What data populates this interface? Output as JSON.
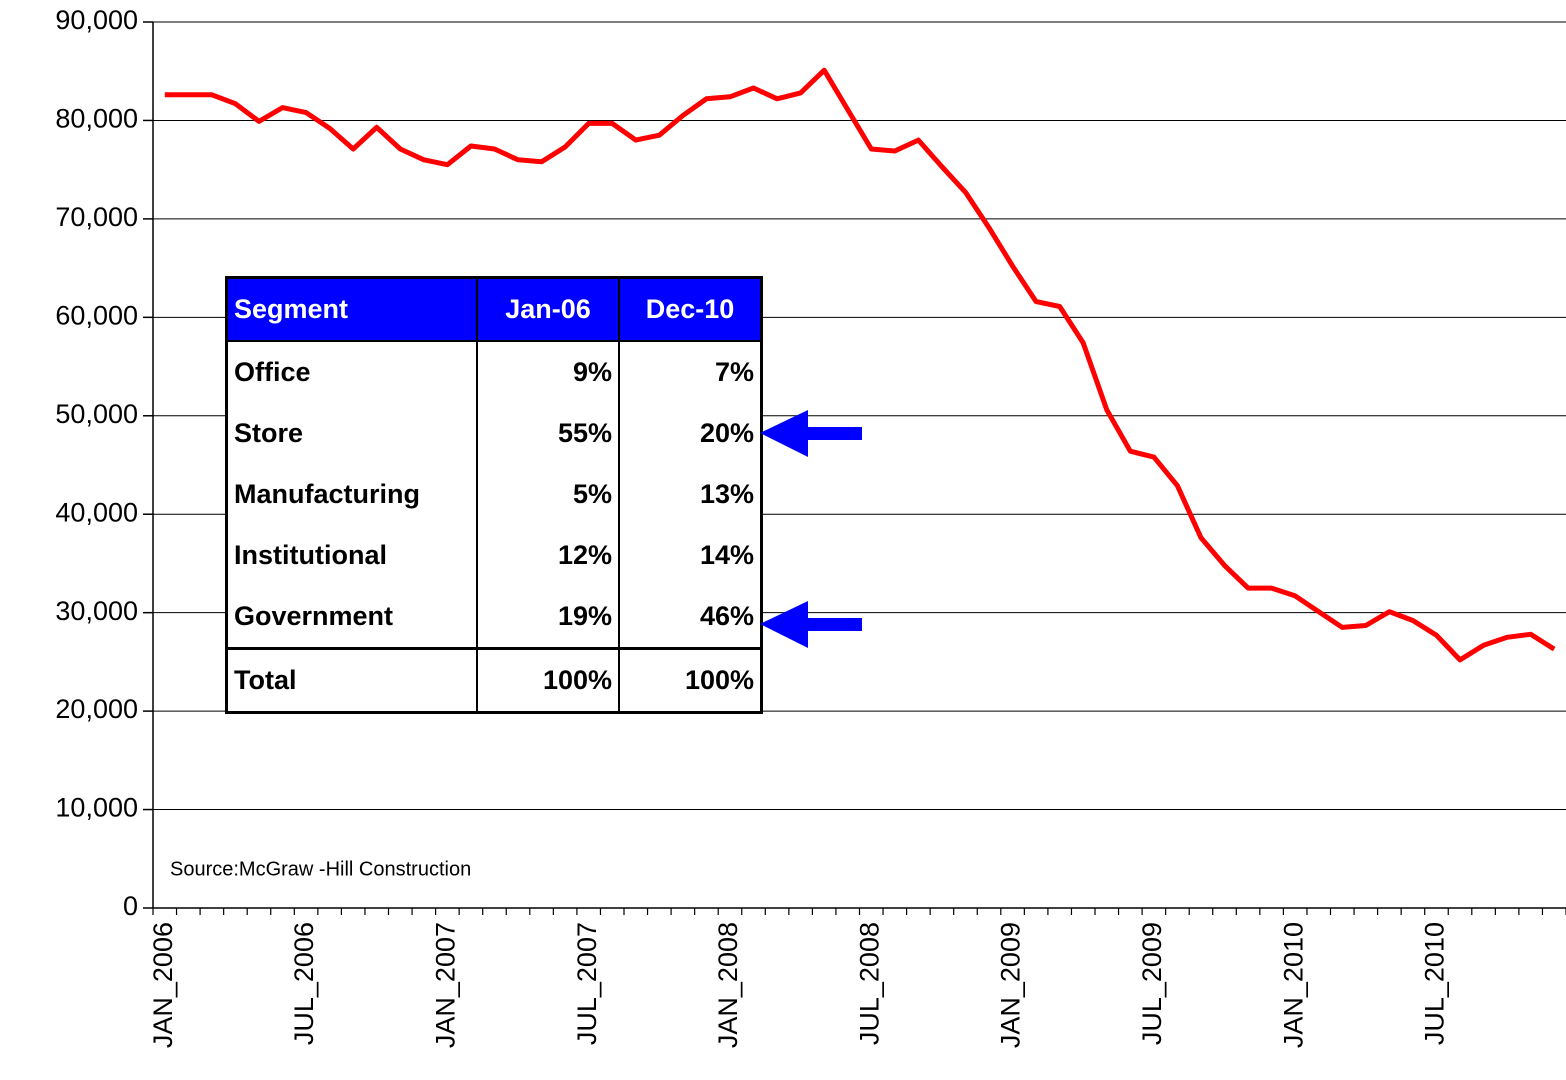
{
  "chart_data": {
    "type": "line",
    "categories": [
      "JAN_2006",
      null,
      null,
      null,
      null,
      null,
      "JUL_2006",
      null,
      null,
      null,
      null,
      null,
      "JAN_2007",
      null,
      null,
      null,
      null,
      null,
      "JUL_2007",
      null,
      null,
      null,
      null,
      null,
      "JAN_2008",
      null,
      null,
      null,
      null,
      null,
      "JUL_2008",
      null,
      null,
      null,
      null,
      null,
      "JAN_2009",
      null,
      null,
      null,
      null,
      null,
      "JUL_2009",
      null,
      null,
      null,
      null,
      null,
      "JAN_2010",
      null,
      null,
      null,
      null,
      null,
      "JUL_2010",
      null,
      null,
      null,
      null,
      null
    ],
    "values": [
      82600,
      82600,
      82600,
      81700,
      79900,
      81300,
      80800,
      79200,
      77100,
      79300,
      77100,
      76000,
      75500,
      77400,
      77100,
      76000,
      75800,
      77300,
      79700,
      79700,
      78000,
      78500,
      80500,
      82200,
      82400,
      83300,
      82200,
      82800,
      85100,
      81100,
      77100,
      76900,
      78000,
      75300,
      72700,
      69100,
      65200,
      61600,
      61100,
      57400,
      50600,
      46400,
      45800,
      42900,
      37600,
      34800,
      32500,
      32500,
      31700,
      30100,
      28500,
      28700,
      30100,
      29200,
      27700,
      25200,
      26700,
      27500,
      27800,
      26300
    ],
    "color": "#ff0000",
    "ylim": [
      0,
      90000
    ],
    "yticks": [
      0,
      {
        "value": 10000,
        "label": "10,000"
      },
      {
        "value": 20000,
        "label": "20,000"
      },
      {
        "value": 30000,
        "label": "30,000"
      },
      {
        "value": 40000,
        "label": "40,000"
      },
      {
        "value": 50000,
        "label": "50,000"
      },
      {
        "value": 60000,
        "label": "60,000"
      },
      {
        "value": 70000,
        "label": "70,000"
      },
      {
        "value": 80000,
        "label": "80,000"
      },
      {
        "value": 90000,
        "label": "90,000"
      }
    ],
    "grid": true,
    "annotation": "Source:McGraw -Hill Construction"
  },
  "table": {
    "header": [
      "Segment",
      "Jan-06",
      "Dec-10"
    ],
    "rows": [
      [
        "Office",
        "9%",
        "7%"
      ],
      [
        "Store",
        "55%",
        "20%"
      ],
      [
        "Manufacturing",
        "5%",
        "13%"
      ],
      [
        "Institutional",
        "12%",
        "14%"
      ],
      [
        "Government",
        "19%",
        "46%"
      ],
      [
        "Total",
        "100%",
        "100%"
      ]
    ]
  }
}
